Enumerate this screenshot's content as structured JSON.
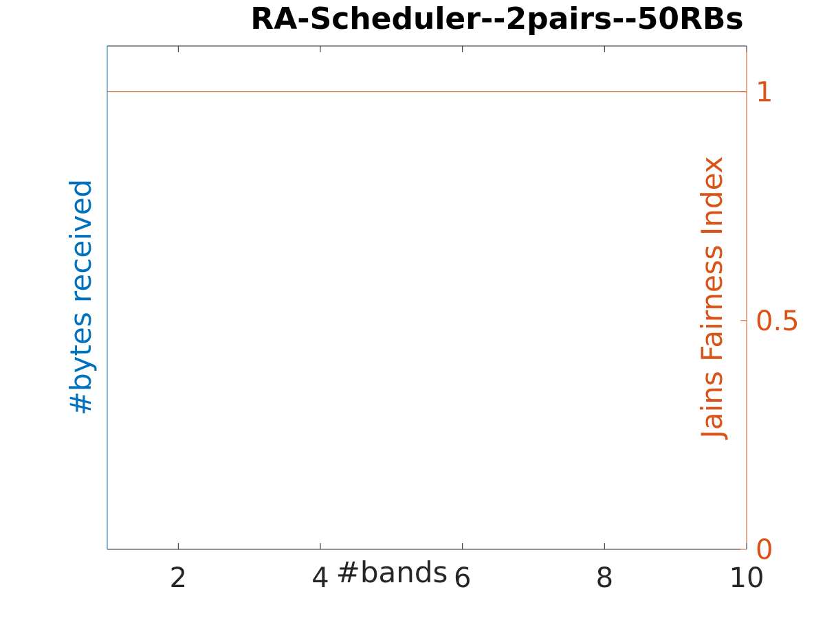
{
  "chart_data": {
    "type": "line",
    "title": "RA-Scheduler--2pairs--50RBs",
    "xlabel": "#bands",
    "ylabel_left": "#bytes received",
    "ylabel_right": "Jains Fairness Index",
    "xlim": [
      1,
      10
    ],
    "xticks": [
      2,
      4,
      6,
      8,
      10
    ],
    "ylim_right": [
      0,
      1.1
    ],
    "yticks_right": [
      0,
      0.5,
      1
    ],
    "grid": false,
    "series": [
      {
        "axis": "right",
        "x": [
          1,
          10
        ],
        "y": [
          1,
          1
        ]
      }
    ],
    "colors": {
      "left_axis": "#0072BD",
      "right_axis": "#D95319",
      "text": "#262626"
    }
  }
}
